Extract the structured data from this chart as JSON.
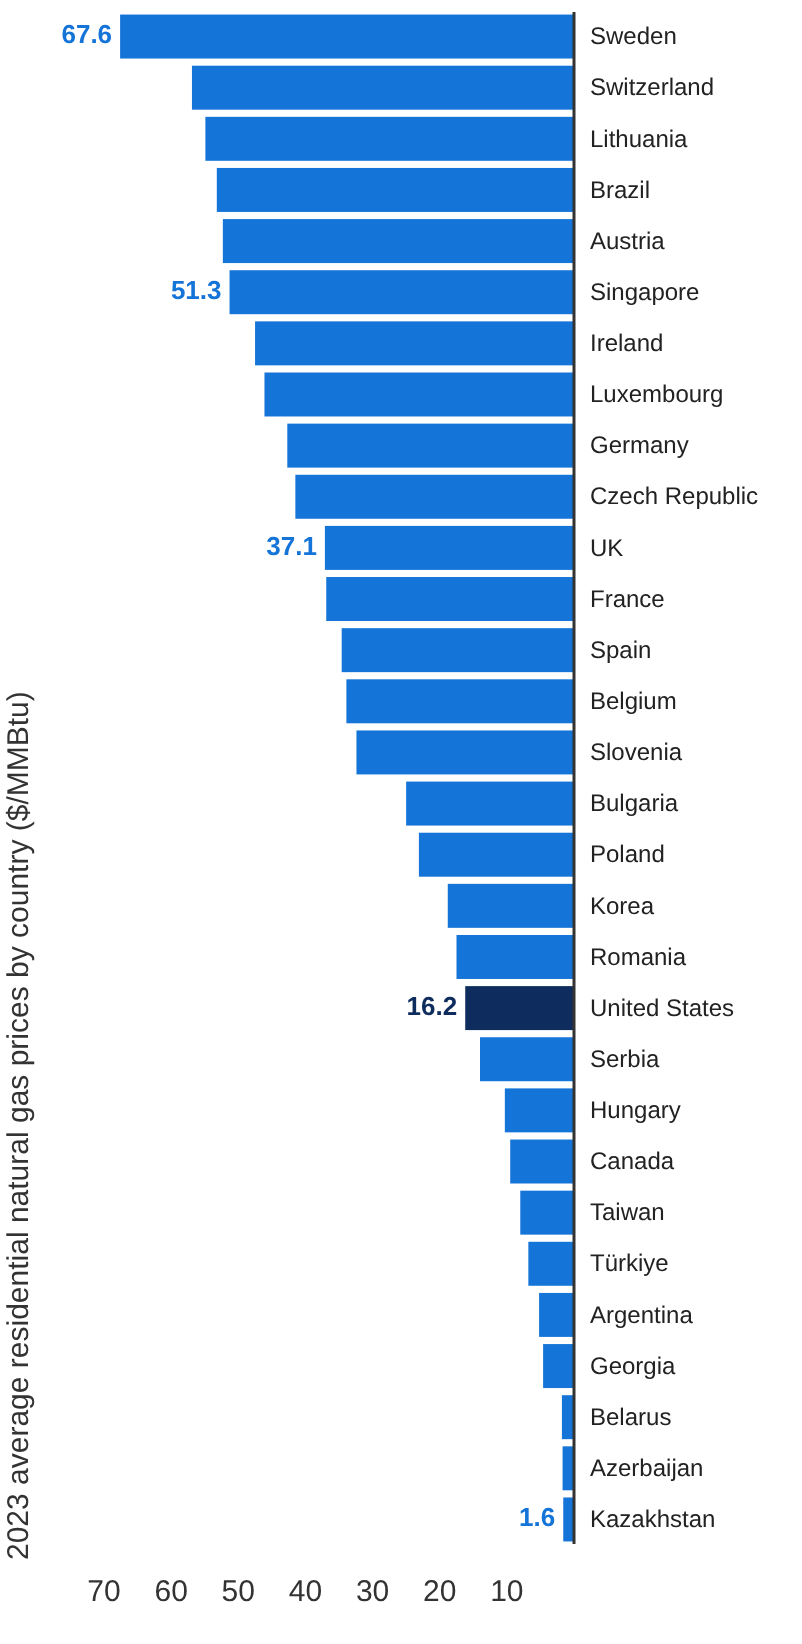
{
  "chart_data": {
    "type": "bar",
    "orientation": "horizontal",
    "title": "2023 average residential natural gas prices by country ($/MMBtu)",
    "categories": [
      "Sweden",
      "Switzerland",
      "Lithuania",
      "Brazil",
      "Austria",
      "Singapore",
      "Ireland",
      "Luxembourg",
      "Germany",
      "Czech Republic",
      "UK",
      "France",
      "Spain",
      "Belgium",
      "Slovenia",
      "Bulgaria",
      "Poland",
      "Korea",
      "Romania",
      "United States",
      "Serbia",
      "Hungary",
      "Canada",
      "Taiwan",
      "Türkiye",
      "Argentina",
      "Georgia",
      "Belarus",
      "Azerbaijan",
      "Kazakhstan"
    ],
    "values": [
      67.6,
      56.9,
      54.9,
      53.2,
      52.3,
      51.3,
      47.5,
      46.1,
      42.7,
      41.5,
      37.1,
      36.9,
      34.6,
      33.9,
      32.4,
      25.0,
      23.1,
      18.8,
      17.5,
      16.2,
      14.0,
      10.3,
      9.5,
      8.0,
      6.8,
      5.2,
      4.6,
      1.8,
      1.7,
      1.6
    ],
    "colors": [
      "#1474d8",
      "#1474d8",
      "#1474d8",
      "#1474d8",
      "#1474d8",
      "#1474d8",
      "#1474d8",
      "#1474d8",
      "#1474d8",
      "#1474d8",
      "#1474d8",
      "#1474d8",
      "#1474d8",
      "#1474d8",
      "#1474d8",
      "#1474d8",
      "#1474d8",
      "#1474d8",
      "#1474d8",
      "#0e2d5e",
      "#1474d8",
      "#1474d8",
      "#1474d8",
      "#1474d8",
      "#1474d8",
      "#1474d8",
      "#1474d8",
      "#1474d8",
      "#1474d8",
      "#1474d8"
    ],
    "value_labels": [
      "67.6",
      null,
      null,
      null,
      null,
      "51.3",
      null,
      null,
      null,
      null,
      "37.1",
      null,
      null,
      null,
      null,
      null,
      null,
      null,
      null,
      "16.2",
      null,
      null,
      null,
      null,
      null,
      null,
      null,
      null,
      null,
      "1.6"
    ],
    "xlim": [
      70,
      0
    ],
    "xticks": [
      10,
      20,
      30,
      40,
      50,
      60,
      70
    ],
    "grid": false
  }
}
